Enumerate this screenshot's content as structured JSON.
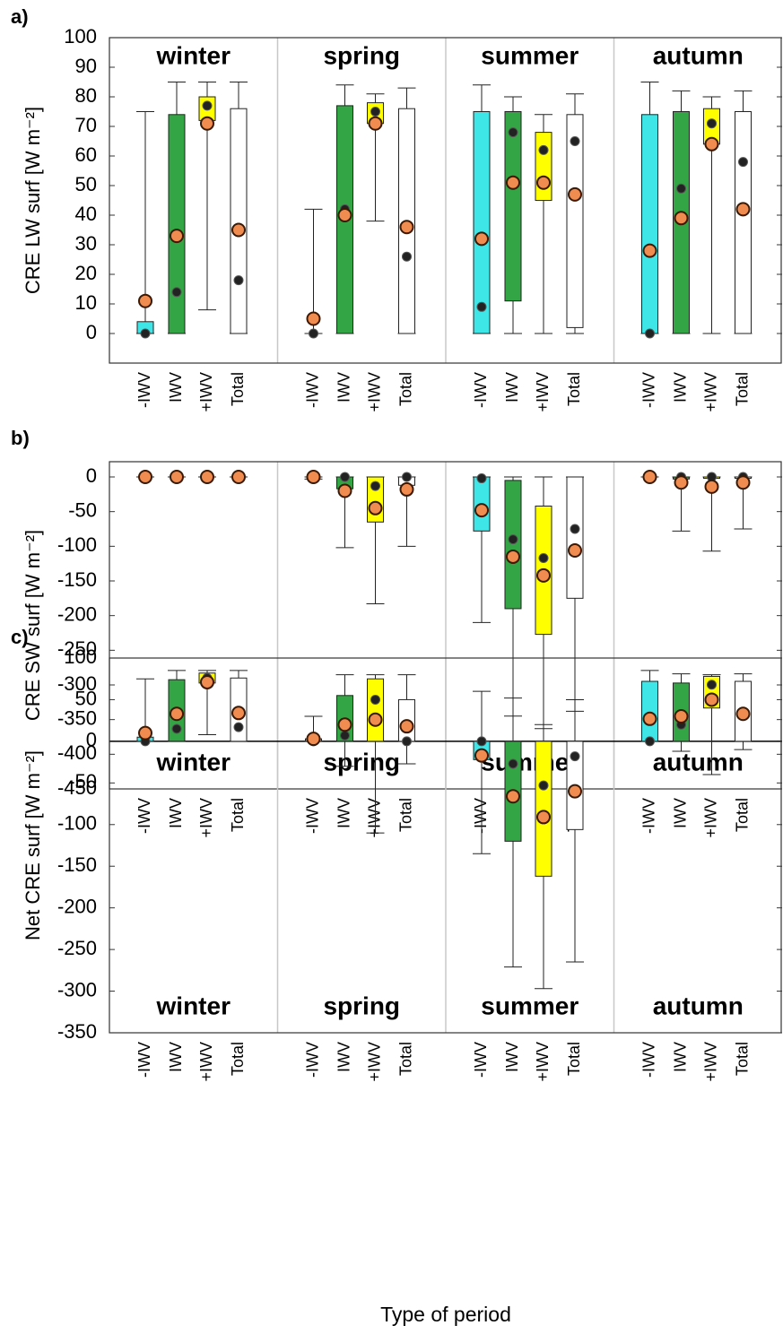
{
  "chart_data": [
    {
      "type": "box",
      "label": "a)",
      "ylabel": "CRE LW surf  [W m⁻²]",
      "ylim": [
        -10,
        100
      ],
      "yticks": [
        0,
        10,
        20,
        30,
        40,
        50,
        60,
        70,
        80,
        90,
        100
      ],
      "season_label_position": "top",
      "zero_line": false,
      "seasons": [
        "winter",
        "spring",
        "summer",
        "autumn"
      ],
      "groups": [
        "-IWV",
        "IWV",
        "+IWV",
        "Total"
      ],
      "colors": [
        "#3fe6e8",
        "#34a544",
        "#ffff00",
        "#ffffff"
      ],
      "boxes": [
        [
          {
            "whislo": 0,
            "q1": 0,
            "q3": 4,
            "whishi": 75,
            "median": 0,
            "mean": 11
          },
          {
            "whislo": 0,
            "q1": 0,
            "q3": 74,
            "whishi": 85,
            "median": 14,
            "mean": 33
          },
          {
            "whislo": 8,
            "q1": 72,
            "q3": 80,
            "whishi": 85,
            "median": 77,
            "mean": 71
          },
          {
            "whislo": 0,
            "q1": 0,
            "q3": 76,
            "whishi": 85,
            "median": 18,
            "mean": 35
          }
        ],
        [
          {
            "whislo": 0,
            "q1": 0,
            "q3": 0,
            "whishi": 42,
            "median": 0,
            "mean": 5
          },
          {
            "whislo": 0,
            "q1": 0,
            "q3": 77,
            "whishi": 84,
            "median": 42,
            "mean": 40
          },
          {
            "whislo": 38,
            "q1": 71,
            "q3": 78,
            "whishi": 81,
            "median": 75,
            "mean": 71
          },
          {
            "whislo": 0,
            "q1": 0,
            "q3": 76,
            "whishi": 83,
            "median": 26,
            "mean": 36
          }
        ],
        [
          {
            "whislo": 0,
            "q1": 0,
            "q3": 75,
            "whishi": 84,
            "median": 9,
            "mean": 32
          },
          {
            "whislo": 0,
            "q1": 11,
            "q3": 75,
            "whishi": 80,
            "median": 68,
            "mean": 51
          },
          {
            "whislo": 0,
            "q1": 45,
            "q3": 68,
            "whishi": 74,
            "median": 62,
            "mean": 51
          },
          {
            "whislo": 0,
            "q1": 2,
            "q3": 74,
            "whishi": 81,
            "median": 65,
            "mean": 47
          }
        ],
        [
          {
            "whislo": 0,
            "q1": 0,
            "q3": 74,
            "whishi": 85,
            "median": 0,
            "mean": 28
          },
          {
            "whislo": 0,
            "q1": 0,
            "q3": 75,
            "whishi": 82,
            "median": 49,
            "mean": 39
          },
          {
            "whislo": 0,
            "q1": 64,
            "q3": 76,
            "whishi": 80,
            "median": 71,
            "mean": 64
          },
          {
            "whislo": 0,
            "q1": 0,
            "q3": 75,
            "whishi": 82,
            "median": 58,
            "mean": 42
          }
        ]
      ]
    },
    {
      "type": "box",
      "label": "b)",
      "ylabel": "CRE SW surf  [W m⁻²]",
      "ylim": [
        -450,
        22
      ],
      "yticks": [
        -450,
        -400,
        -350,
        -300,
        -250,
        -200,
        -150,
        -100,
        -50,
        0
      ],
      "season_label_position": "bottom",
      "zero_line": false,
      "seasons": [
        "winter",
        "spring",
        "summer",
        "autumn"
      ],
      "groups": [
        "-IWV",
        "IWV",
        "+IWV",
        "Total"
      ],
      "colors": [
        "#3fe6e8",
        "#34a544",
        "#ffff00",
        "#ffffff"
      ],
      "boxes": [
        [
          {
            "whislo": 0,
            "q1": 0,
            "q3": 0,
            "whishi": 0,
            "median": 0,
            "mean": 0
          },
          {
            "whislo": 0,
            "q1": 0,
            "q3": 0,
            "whishi": 0,
            "median": 0,
            "mean": 0
          },
          {
            "whislo": 0,
            "q1": 0,
            "q3": 0,
            "whishi": 0,
            "median": 0,
            "mean": 0
          },
          {
            "whislo": 0,
            "q1": 0,
            "q3": 0,
            "whishi": 0,
            "median": 0,
            "mean": 0
          }
        ],
        [
          {
            "whislo": -3,
            "q1": 0,
            "q3": 0,
            "whishi": 0,
            "median": 0,
            "mean": 0
          },
          {
            "whislo": -102,
            "q1": -17,
            "q3": 0,
            "whishi": 0,
            "median": 0,
            "mean": -20
          },
          {
            "whislo": -183,
            "q1": -65,
            "q3": 0,
            "whishi": 0,
            "median": -13,
            "mean": -45
          },
          {
            "whislo": -100,
            "q1": -12,
            "q3": 0,
            "whishi": 0,
            "median": 0,
            "mean": -18
          }
        ],
        [
          {
            "whislo": -210,
            "q1": -78,
            "q3": 0,
            "whishi": 0,
            "median": -2,
            "mean": -48
          },
          {
            "whislo": -345,
            "q1": -190,
            "q3": -5,
            "whishi": 0,
            "median": -90,
            "mean": -115
          },
          {
            "whislo": -363,
            "q1": -227,
            "q3": -42,
            "whishi": 0,
            "median": -117,
            "mean": -142
          },
          {
            "whislo": -338,
            "q1": -175,
            "q3": 0,
            "whishi": 0,
            "median": -75,
            "mean": -106
          }
        ],
        [
          {
            "whislo": 0,
            "q1": 0,
            "q3": 0,
            "whishi": 0,
            "median": 0,
            "mean": 0
          },
          {
            "whislo": -78,
            "q1": -3,
            "q3": 0,
            "whishi": 0,
            "median": 0,
            "mean": -8
          },
          {
            "whislo": -107,
            "q1": -2,
            "q3": 0,
            "whishi": 0,
            "median": 0,
            "mean": -14
          },
          {
            "whislo": -75,
            "q1": -2,
            "q3": 0,
            "whishi": 0,
            "median": 0,
            "mean": -8
          }
        ]
      ]
    },
    {
      "type": "box",
      "label": "c)",
      "ylabel": "Net CRE surf  [W m⁻²]",
      "ylim": [
        -350,
        100
      ],
      "yticks": [
        -350,
        -300,
        -250,
        -200,
        -150,
        -100,
        -50,
        0,
        50,
        100
      ],
      "season_label_position": "bottom",
      "zero_line": true,
      "seasons": [
        "winter",
        "spring",
        "summer",
        "autumn"
      ],
      "groups": [
        "-IWV",
        "IWV",
        "+IWV",
        "Total"
      ],
      "colors": [
        "#3fe6e8",
        "#34a544",
        "#ffff00",
        "#ffffff"
      ],
      "boxes": [
        [
          {
            "whislo": 0,
            "q1": 0,
            "q3": 5,
            "whishi": 75,
            "median": 0,
            "mean": 10
          },
          {
            "whislo": 0,
            "q1": 0,
            "q3": 74,
            "whishi": 85,
            "median": 15,
            "mean": 33
          },
          {
            "whislo": 8,
            "q1": 70,
            "q3": 82,
            "whishi": 85,
            "median": 76,
            "mean": 71
          },
          {
            "whislo": 0,
            "q1": 0,
            "q3": 76,
            "whishi": 85,
            "median": 17,
            "mean": 34
          }
        ],
        [
          {
            "whislo": 0,
            "q1": 0,
            "q3": 3,
            "whishi": 30,
            "median": 0,
            "mean": 3
          },
          {
            "whislo": -30,
            "q1": 0,
            "q3": 55,
            "whishi": 80,
            "median": 7,
            "mean": 20
          },
          {
            "whislo": -110,
            "q1": 0,
            "q3": 75,
            "whishi": 80,
            "median": 50,
            "mean": 26
          },
          {
            "whislo": -27,
            "q1": 0,
            "q3": 50,
            "whishi": 80,
            "median": 0,
            "mean": 18
          }
        ],
        [
          {
            "whislo": -135,
            "q1": -22,
            "q3": 0,
            "whishi": 60,
            "median": 0,
            "mean": -17
          },
          {
            "whislo": -271,
            "q1": -120,
            "q3": 0,
            "whishi": 52,
            "median": -27,
            "mean": -66
          },
          {
            "whislo": -297,
            "q1": -162,
            "q3": 0,
            "whishi": 20,
            "median": -53,
            "mean": -91
          },
          {
            "whislo": -265,
            "q1": -106,
            "q3": 0,
            "whishi": 50,
            "median": -18,
            "mean": -60
          }
        ],
        [
          {
            "whislo": 0,
            "q1": 0,
            "q3": 72,
            "whishi": 85,
            "median": 0,
            "mean": 27
          },
          {
            "whislo": -12,
            "q1": 0,
            "q3": 70,
            "whishi": 81,
            "median": 20,
            "mean": 30
          },
          {
            "whislo": -40,
            "q1": 40,
            "q3": 78,
            "whishi": 80,
            "median": 68,
            "mean": 50
          },
          {
            "whislo": -10,
            "q1": 0,
            "q3": 72,
            "whishi": 81,
            "median": 33,
            "mean": 33
          }
        ]
      ]
    }
  ],
  "xlabel": "Type of period"
}
